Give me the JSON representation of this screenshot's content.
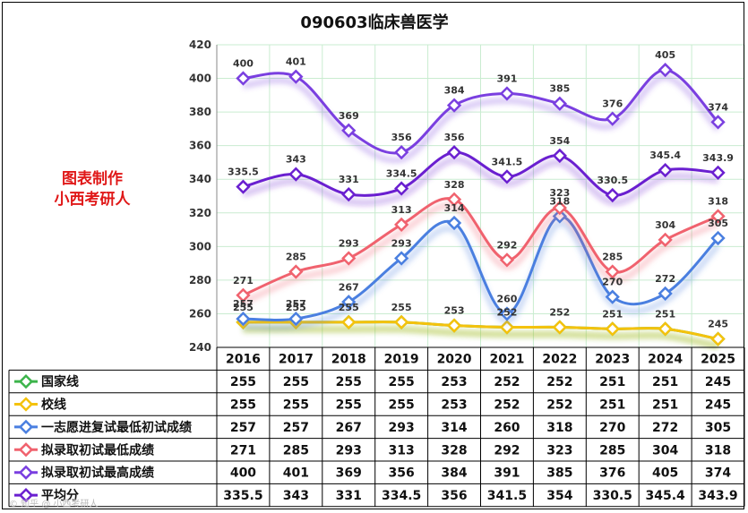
{
  "title": "090603临床兽医学",
  "watermark": [
    "图表制作",
    "小西考研人"
  ],
  "corner_mark": "© 知乎 @ 小西考研人",
  "chart_data": {
    "type": "line",
    "title": "090603临床兽医学",
    "categories": [
      "2016",
      "2017",
      "2018",
      "2019",
      "2020",
      "2021",
      "2022",
      "2023",
      "2024",
      "2025"
    ],
    "ylim": [
      240,
      420
    ],
    "yticks": [
      240,
      260,
      280,
      300,
      320,
      340,
      360,
      380,
      400,
      420
    ],
    "grid": true,
    "legend": "table-below",
    "series": [
      {
        "name": "国家线",
        "color": "#3cb44b",
        "values": [
          255,
          255,
          255,
          255,
          253,
          252,
          252,
          251,
          251,
          245
        ],
        "labels": [
          "255",
          "255",
          "255",
          "255",
          "253",
          "252",
          "252",
          "251",
          "251",
          "245"
        ],
        "show_labels": false
      },
      {
        "name": "校线",
        "color": "#f4c20d",
        "values": [
          255,
          255,
          255,
          255,
          253,
          252,
          252,
          251,
          251,
          245
        ],
        "labels": [
          "255",
          "255",
          "255",
          "255",
          "253",
          "252",
          "252",
          "251",
          "251",
          "245"
        ],
        "show_labels": true
      },
      {
        "name": "一志愿进复试最低初试成绩",
        "color": "#4a7fe0",
        "values": [
          257,
          257,
          267,
          293,
          314,
          260,
          318,
          270,
          272,
          305
        ],
        "labels": [
          "257",
          "257",
          "267",
          "293",
          "314",
          "260",
          "318",
          "270",
          "272",
          "305"
        ],
        "show_labels": true
      },
      {
        "name": "拟录取初试最低成绩",
        "color": "#f0626e",
        "values": [
          271,
          285,
          293,
          313,
          328,
          292,
          323,
          285,
          304,
          318
        ],
        "labels": [
          "271",
          "285",
          "293",
          "313",
          "328",
          "292",
          "323",
          "285",
          "304",
          "318"
        ],
        "show_labels": true
      },
      {
        "name": "拟录取初试最高成绩",
        "color": "#7a3fe0",
        "values": [
          400,
          401,
          369,
          356,
          384,
          391,
          385,
          376,
          405,
          374
        ],
        "labels": [
          "400",
          "401",
          "369",
          "356",
          "384",
          "391",
          "385",
          "376",
          "405",
          "374"
        ],
        "show_labels": true
      },
      {
        "name": "平均分",
        "color": "#6a1fd0",
        "values": [
          335.5,
          343,
          331,
          334.5,
          356,
          341.5,
          354,
          330.5,
          345.4,
          343.9
        ],
        "labels": [
          "335.5",
          "343",
          "331",
          "334.5",
          "356",
          "341.5",
          "354",
          "330.5",
          "345.4",
          "343.9"
        ],
        "show_labels": true
      }
    ]
  }
}
